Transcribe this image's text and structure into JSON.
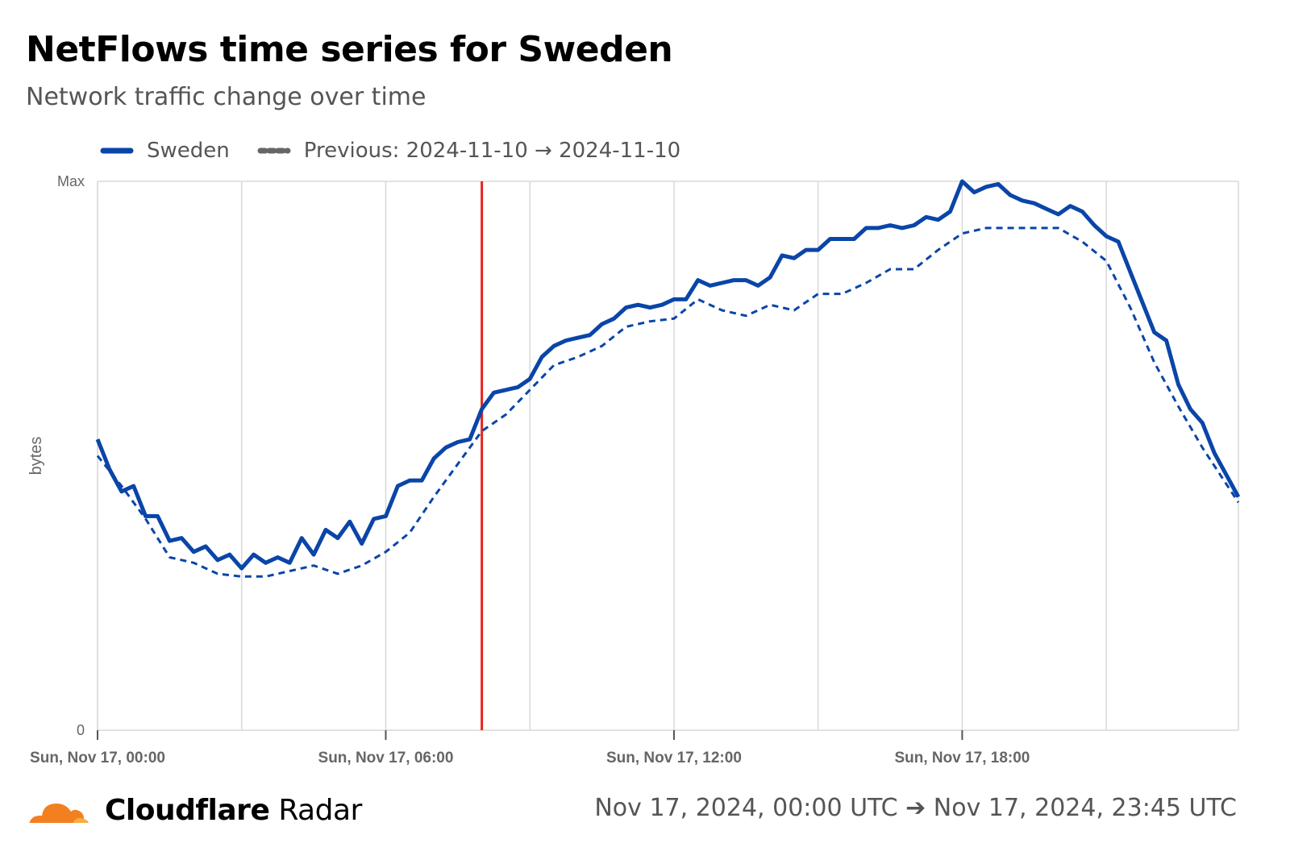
{
  "header": {
    "title": "NetFlows time series for Sweden",
    "subtitle": "Network traffic change over time"
  },
  "legend": {
    "current_label": "Sweden",
    "previous_label": "Previous: 2024-11-10 → 2024-11-10"
  },
  "colors": {
    "series": "#0a45a8",
    "marker": "#e8231b",
    "grid": "#d9d9d9",
    "axis_text": "#666666",
    "logo_orange": "#f38020",
    "logo_light": "#faae40"
  },
  "footer": {
    "brand_bold": "Cloudflare",
    "brand_light": "Radar",
    "date_range": "Nov 17, 2024, 00:00 UTC ➔ Nov 17, 2024, 23:45 UTC"
  },
  "chart_data": {
    "type": "line",
    "ylabel": "bytes",
    "y_tick_labels": [
      "0",
      "Max"
    ],
    "ylim": [
      0,
      100
    ],
    "xlim_hours": [
      0,
      23.75
    ],
    "x_ticks": [
      {
        "hour": 0,
        "label": "Sun, Nov 17, 00:00"
      },
      {
        "hour": 6,
        "label": "Sun, Nov 17, 06:00"
      },
      {
        "hour": 12,
        "label": "Sun, Nov 17, 12:00"
      },
      {
        "hour": 18,
        "label": "Sun, Nov 17, 18:00"
      }
    ],
    "grid_hours": [
      0,
      3,
      6,
      9,
      12,
      15,
      18,
      21,
      23.75
    ],
    "marker_hour": 8.0,
    "series": [
      {
        "name": "Sweden",
        "style": "solid",
        "x_hours": [
          0.0,
          0.25,
          0.5,
          0.75,
          1.0,
          1.25,
          1.5,
          1.75,
          2.0,
          2.25,
          2.5,
          2.75,
          3.0,
          3.25,
          3.5,
          3.75,
          4.0,
          4.25,
          4.5,
          4.75,
          5.0,
          5.25,
          5.5,
          5.75,
          6.0,
          6.25,
          6.5,
          6.75,
          7.0,
          7.25,
          7.5,
          7.75,
          8.0,
          8.25,
          8.5,
          8.75,
          9.0,
          9.25,
          9.5,
          9.75,
          10.0,
          10.25,
          10.5,
          10.75,
          11.0,
          11.25,
          11.5,
          11.75,
          12.0,
          12.25,
          12.5,
          12.75,
          13.0,
          13.25,
          13.5,
          13.75,
          14.0,
          14.25,
          14.5,
          14.75,
          15.0,
          15.25,
          15.5,
          15.75,
          16.0,
          16.25,
          16.5,
          16.75,
          17.0,
          17.25,
          17.5,
          17.75,
          18.0,
          18.25,
          18.5,
          18.75,
          19.0,
          19.25,
          19.5,
          19.75,
          20.0,
          20.25,
          20.5,
          20.75,
          21.0,
          21.25,
          21.5,
          21.75,
          22.0,
          22.25,
          22.5,
          22.75,
          23.0,
          23.25,
          23.5,
          23.75
        ],
        "values": [
          53.0,
          47.5,
          43.5,
          44.5,
          39.0,
          39.0,
          34.5,
          35.0,
          32.5,
          33.5,
          31.0,
          32.0,
          29.5,
          32.0,
          30.5,
          31.5,
          30.5,
          35.0,
          32.0,
          36.5,
          35.0,
          38.0,
          34.0,
          38.5,
          39.0,
          44.5,
          45.5,
          45.5,
          49.5,
          51.5,
          52.5,
          53.0,
          58.5,
          61.5,
          62.0,
          62.5,
          64.0,
          68.0,
          70.0,
          71.0,
          71.5,
          72.0,
          74.0,
          75.0,
          77.0,
          77.5,
          77.0,
          77.5,
          78.5,
          78.5,
          82.0,
          81.0,
          81.5,
          82.0,
          82.0,
          81.0,
          82.5,
          86.5,
          86.0,
          87.5,
          87.5,
          89.5,
          89.5,
          89.5,
          91.5,
          91.5,
          92.0,
          91.5,
          92.0,
          93.5,
          93.0,
          94.5,
          100.0,
          98.0,
          99.0,
          99.5,
          97.5,
          96.5,
          96.0,
          95.0,
          94.0,
          95.5,
          94.5,
          92.0,
          90.0,
          89.0,
          83.5,
          78.0,
          72.5,
          71.0,
          63.0,
          58.5,
          56.0,
          50.5,
          46.5,
          42.5
        ]
      },
      {
        "name": "Previous: 2024-11-10 → 2024-11-10",
        "style": "dashed",
        "x_hours": [
          0.0,
          0.5,
          1.0,
          1.5,
          2.0,
          2.5,
          3.0,
          3.5,
          4.0,
          4.5,
          5.0,
          5.5,
          6.0,
          6.5,
          7.0,
          7.5,
          8.0,
          8.5,
          9.0,
          9.5,
          10.0,
          10.5,
          11.0,
          11.5,
          12.0,
          12.5,
          13.0,
          13.5,
          14.0,
          14.5,
          15.0,
          15.5,
          16.0,
          16.5,
          17.0,
          17.5,
          18.0,
          18.5,
          19.0,
          19.5,
          20.0,
          20.5,
          21.0,
          21.5,
          22.0,
          22.5,
          23.0,
          23.75
        ],
        "values": [
          50.0,
          44.5,
          38.5,
          31.5,
          30.5,
          28.5,
          28.0,
          28.0,
          29.0,
          30.0,
          28.5,
          30.0,
          32.5,
          36.0,
          42.5,
          48.5,
          54.5,
          57.5,
          62.0,
          66.5,
          68.0,
          70.0,
          73.5,
          74.5,
          75.0,
          78.5,
          76.5,
          75.5,
          77.5,
          76.5,
          79.5,
          79.5,
          81.5,
          84.0,
          84.0,
          87.5,
          90.5,
          91.5,
          91.5,
          91.5,
          91.5,
          89.0,
          85.5,
          77.0,
          67.0,
          59.0,
          51.5,
          41.5
        ]
      }
    ]
  }
}
